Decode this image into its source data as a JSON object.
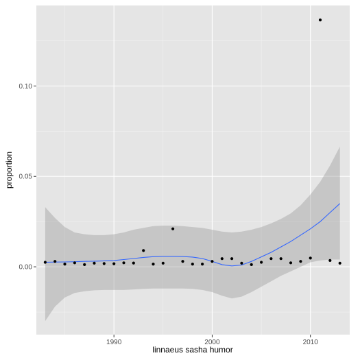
{
  "chart_data": {
    "type": "scatter",
    "title": "",
    "xlabel": "linnaeus sasha humor",
    "ylabel": "proportion",
    "xlim": [
      1982.1,
      2014.0
    ],
    "ylim": [
      -0.0375,
      0.1445
    ],
    "x_ticks": [
      1990,
      2000,
      2010
    ],
    "y_ticks": [
      0.0,
      0.05,
      0.1
    ],
    "x_tick_labels": [
      "1990",
      "2000",
      "2010"
    ],
    "y_tick_labels": [
      "0.00",
      "0.05",
      "0.10"
    ],
    "grid": true,
    "panel_background": "#e5e5e5",
    "grid_color": "#ffffff",
    "point_color": "#000000",
    "smooth_color": "#3366ff",
    "ribbon_color": "#999999",
    "points": {
      "x": [
        1983,
        1984,
        1985,
        1986,
        1987,
        1988,
        1989,
        1990,
        1991,
        1992,
        1993,
        1994,
        1995,
        1996,
        1997,
        1998,
        1999,
        2000,
        2001,
        2002,
        2003,
        2004,
        2005,
        2006,
        2007,
        2008,
        2009,
        2010,
        2011,
        2012,
        2013
      ],
      "y": [
        0.0025,
        0.003,
        0.0015,
        0.0022,
        0.0012,
        0.002,
        0.0018,
        0.0017,
        0.0022,
        0.0021,
        0.009,
        0.0015,
        0.002,
        0.021,
        0.003,
        0.0015,
        0.0015,
        0.003,
        0.0045,
        0.0045,
        0.002,
        0.0012,
        0.0025,
        0.0045,
        0.0045,
        0.0022,
        0.003,
        0.0048,
        0.1365,
        0.0035,
        0.002
      ]
    },
    "smooth": {
      "x": [
        1983,
        1984,
        1985,
        1986,
        1987,
        1988,
        1989,
        1990,
        1991,
        1992,
        1993,
        1994,
        1995,
        1996,
        1997,
        1998,
        1999,
        2000,
        2001,
        2002,
        2003,
        2004,
        2005,
        2006,
        2007,
        2008,
        2009,
        2010,
        2011,
        2012,
        2013
      ],
      "y": [
        0.0025,
        0.0026,
        0.0027,
        0.0028,
        0.003,
        0.0031,
        0.0033,
        0.0035,
        0.004,
        0.0046,
        0.0052,
        0.0056,
        0.0058,
        0.0058,
        0.0057,
        0.0054,
        0.0046,
        0.003,
        0.0012,
        0.0005,
        0.001,
        0.003,
        0.0055,
        0.008,
        0.011,
        0.014,
        0.0175,
        0.021,
        0.025,
        0.03,
        0.035
      ],
      "lower": [
        -0.03,
        -0.022,
        -0.017,
        -0.0145,
        -0.0135,
        -0.013,
        -0.0128,
        -0.0128,
        -0.0128,
        -0.0125,
        -0.0122,
        -0.012,
        -0.012,
        -0.012,
        -0.012,
        -0.0122,
        -0.0128,
        -0.014,
        -0.016,
        -0.0175,
        -0.0165,
        -0.014,
        -0.011,
        -0.008,
        -0.005,
        -0.0025,
        0.0,
        0.0025,
        0.0035,
        0.004,
        0.004
      ],
      "upper": [
        0.033,
        0.027,
        0.022,
        0.019,
        0.018,
        0.0175,
        0.0175,
        0.018,
        0.019,
        0.0205,
        0.0215,
        0.0225,
        0.0228,
        0.0228,
        0.0225,
        0.022,
        0.0215,
        0.0205,
        0.0195,
        0.019,
        0.0195,
        0.0205,
        0.022,
        0.024,
        0.0265,
        0.0295,
        0.034,
        0.04,
        0.047,
        0.056,
        0.0665
      ]
    }
  }
}
